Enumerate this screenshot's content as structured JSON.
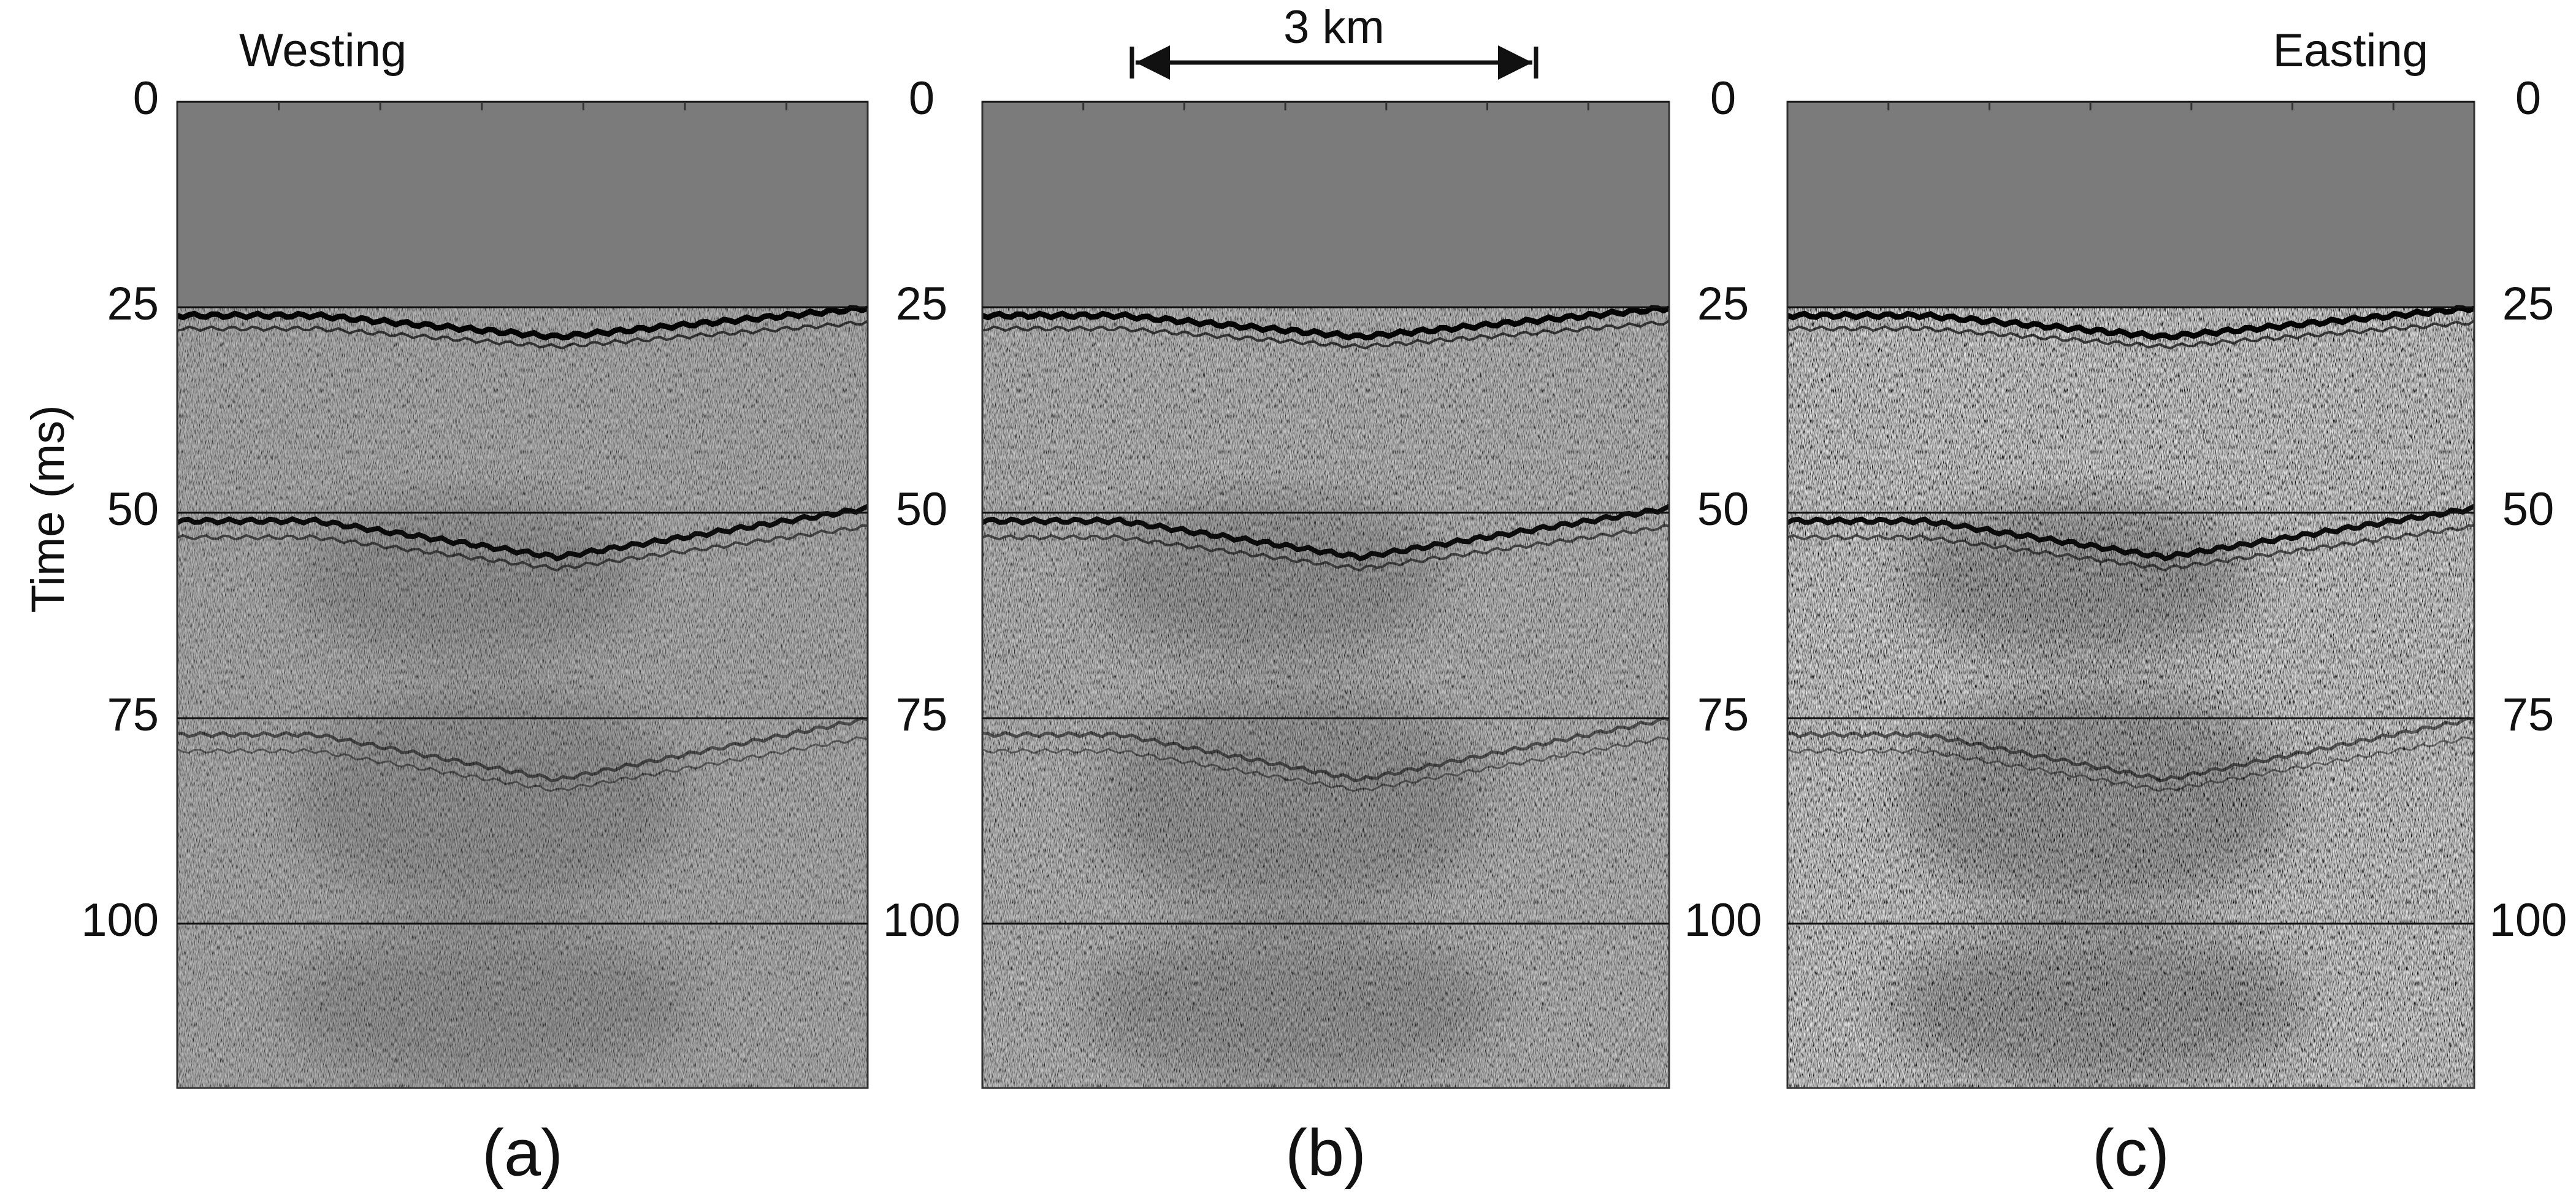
{
  "chart_data": [
    {
      "type": "seismic",
      "ylabel": "Time (ms)",
      "annotation": "Westing",
      "caption": "(a)",
      "ylim": [
        0,
        120
      ],
      "yticks": [
        0,
        25,
        50,
        75,
        100
      ],
      "grid": true,
      "noise": 0.55
    },
    {
      "type": "seismic",
      "scale_bar": "3 km",
      "caption": "(b)",
      "ylim": [
        0,
        120
      ],
      "yticks": [
        0,
        25,
        50,
        75,
        100
      ],
      "grid": true,
      "noise": 0.65
    },
    {
      "type": "seismic",
      "annotation": "Easting",
      "caption": "(c)",
      "ylim": [
        0,
        120
      ],
      "yticks": [
        0,
        25,
        50,
        75,
        100
      ],
      "grid": true,
      "noise": 0.9
    }
  ]
}
